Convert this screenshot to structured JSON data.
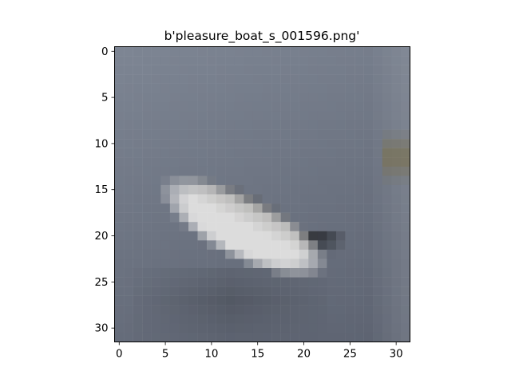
{
  "chart_data": {
    "type": "heatmap",
    "title": "b'pleasure_boat_s_001596.png'",
    "xlabel": "",
    "ylabel": "",
    "image_size": [
      32,
      32
    ],
    "xlim": [
      -0.5,
      31.5
    ],
    "ylim": [
      31.5,
      -0.5
    ],
    "x_ticks": [
      0,
      5,
      10,
      15,
      20,
      25,
      30
    ],
    "y_ticks": [
      0,
      5,
      10,
      15,
      20,
      25,
      30
    ],
    "x_tick_labels": [
      "0",
      "5",
      "10",
      "15",
      "20",
      "25",
      "30"
    ],
    "y_tick_labels": [
      "0",
      "5",
      "10",
      "15",
      "20",
      "25",
      "30"
    ],
    "grid": false,
    "legend": "none",
    "colors": {
      "water_top": "#7d8593",
      "water_bottom": "#5c6270",
      "hull_light": "#dcdcdc",
      "hull_mid": "#a9a8a6",
      "hull_shadow": "#1e2023",
      "dock_object": "#7a7255"
    }
  }
}
